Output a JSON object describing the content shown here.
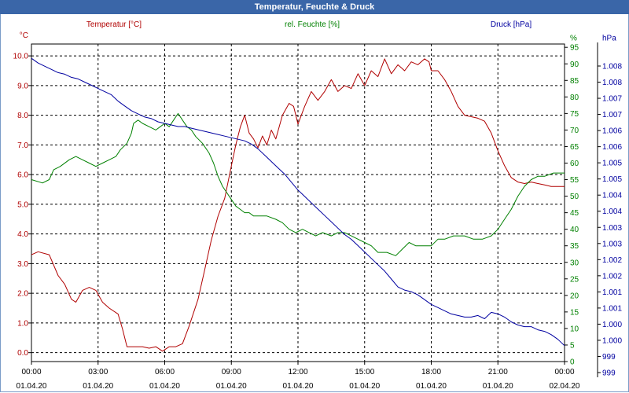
{
  "title": "Temperatur, Feuchte & Druck",
  "colors": {
    "temperature": "#b00000",
    "humidity": "#008000",
    "pressure": "#0000a0"
  },
  "chart_data": {
    "type": "line",
    "title": "Temperatur, Feuchte & Druck",
    "grid": true,
    "x_ticks": [
      {
        "time": "00:00",
        "date": "01.04.20"
      },
      {
        "time": "03:00",
        "date": "01.04.20"
      },
      {
        "time": "06:00",
        "date": "01.04.20"
      },
      {
        "time": "09:00",
        "date": "01.04.20"
      },
      {
        "time": "12:00",
        "date": "01.04.20"
      },
      {
        "time": "15:00",
        "date": "01.04.20"
      },
      {
        "time": "18:00",
        "date": "01.04.20"
      },
      {
        "time": "21:00",
        "date": "01.04.20"
      },
      {
        "time": "00:00",
        "date": "02.04.20"
      }
    ],
    "x_range_hours": [
      0,
      24
    ],
    "axes": {
      "temperature": {
        "label": "Temperatur [°C]",
        "unit": "°C",
        "range": [
          -0.3,
          10.4
        ],
        "ticks": [
          "0.0",
          "1.0",
          "2.0",
          "3.0",
          "4.0",
          "5.0",
          "6.0",
          "7.0",
          "8.0",
          "9.0",
          "10.0"
        ]
      },
      "humidity": {
        "label": "rel. Feuchte [%]",
        "unit": "%",
        "range": [
          0,
          96
        ],
        "ticks": [
          "0",
          "5",
          "10",
          "15",
          "20",
          "25",
          "30",
          "35",
          "40",
          "45",
          "50",
          "55",
          "60",
          "65",
          "70",
          "75",
          "80",
          "85",
          "90",
          "95"
        ]
      },
      "pressure": {
        "label": "Druck [hPa]",
        "unit": "hPa",
        "range": [
          998.6,
          1008.6
        ],
        "ticks": [
          "999",
          "999",
          "1.000",
          "1.000",
          "1.001",
          "1.001",
          "1.002",
          "1.002",
          "1.003",
          "1.003",
          "1.004",
          "1.004",
          "1.005",
          "1.005",
          "1.006",
          "1.006",
          "1.007",
          "1.007",
          "1.008",
          "1.008"
        ]
      }
    },
    "series": [
      {
        "name": "Temperatur [°C]",
        "axis": "temperature",
        "points": [
          [
            0,
            3.3
          ],
          [
            0.3,
            3.4
          ],
          [
            0.8,
            3.3
          ],
          [
            1.2,
            2.6
          ],
          [
            1.5,
            2.3
          ],
          [
            1.8,
            1.8
          ],
          [
            2.0,
            1.7
          ],
          [
            2.3,
            2.1
          ],
          [
            2.6,
            2.2
          ],
          [
            2.9,
            2.1
          ],
          [
            3.2,
            1.7
          ],
          [
            3.5,
            1.5
          ],
          [
            3.9,
            1.3
          ],
          [
            4.1,
            0.8
          ],
          [
            4.3,
            0.2
          ],
          [
            4.6,
            0.2
          ],
          [
            5.0,
            0.2
          ],
          [
            5.3,
            0.15
          ],
          [
            5.6,
            0.2
          ],
          [
            5.9,
            0.05
          ],
          [
            6.2,
            0.2
          ],
          [
            6.5,
            0.2
          ],
          [
            6.8,
            0.3
          ],
          [
            7.1,
            0.9
          ],
          [
            7.5,
            1.8
          ],
          [
            7.8,
            2.8
          ],
          [
            8.1,
            3.8
          ],
          [
            8.4,
            4.6
          ],
          [
            8.7,
            5.2
          ],
          [
            9.0,
            6.3
          ],
          [
            9.2,
            7.0
          ],
          [
            9.4,
            7.6
          ],
          [
            9.6,
            8.0
          ],
          [
            9.8,
            7.4
          ],
          [
            10.0,
            7.2
          ],
          [
            10.2,
            6.9
          ],
          [
            10.4,
            7.3
          ],
          [
            10.6,
            7.0
          ],
          [
            10.8,
            7.5
          ],
          [
            11.0,
            7.2
          ],
          [
            11.3,
            8.0
          ],
          [
            11.6,
            8.4
          ],
          [
            11.8,
            8.3
          ],
          [
            12.0,
            7.7
          ],
          [
            12.3,
            8.3
          ],
          [
            12.6,
            8.8
          ],
          [
            12.9,
            8.5
          ],
          [
            13.2,
            8.8
          ],
          [
            13.5,
            9.2
          ],
          [
            13.8,
            8.8
          ],
          [
            14.1,
            9.0
          ],
          [
            14.4,
            8.9
          ],
          [
            14.7,
            9.4
          ],
          [
            15.0,
            9.0
          ],
          [
            15.3,
            9.5
          ],
          [
            15.6,
            9.3
          ],
          [
            15.9,
            9.9
          ],
          [
            16.2,
            9.4
          ],
          [
            16.5,
            9.7
          ],
          [
            16.8,
            9.5
          ],
          [
            17.1,
            9.8
          ],
          [
            17.4,
            9.7
          ],
          [
            17.7,
            9.9
          ],
          [
            17.9,
            9.8
          ],
          [
            18.0,
            9.5
          ],
          [
            18.3,
            9.5
          ],
          [
            18.6,
            9.2
          ],
          [
            18.9,
            8.8
          ],
          [
            19.2,
            8.3
          ],
          [
            19.5,
            8.0
          ],
          [
            19.8,
            7.95
          ],
          [
            20.1,
            7.9
          ],
          [
            20.4,
            7.8
          ],
          [
            20.7,
            7.4
          ],
          [
            21.0,
            6.8
          ],
          [
            21.3,
            6.3
          ],
          [
            21.6,
            5.9
          ],
          [
            21.9,
            5.75
          ],
          [
            22.2,
            5.7
          ],
          [
            22.5,
            5.75
          ],
          [
            22.8,
            5.7
          ],
          [
            23.1,
            5.65
          ],
          [
            23.4,
            5.6
          ],
          [
            23.7,
            5.6
          ],
          [
            24.0,
            5.6
          ]
        ]
      },
      {
        "name": "rel. Feuchte [%]",
        "axis": "humidity",
        "points": [
          [
            0,
            55
          ],
          [
            0.5,
            54
          ],
          [
            0.8,
            55
          ],
          [
            1.0,
            58
          ],
          [
            1.3,
            59
          ],
          [
            1.7,
            61
          ],
          [
            2.0,
            62
          ],
          [
            2.3,
            61
          ],
          [
            2.6,
            60
          ],
          [
            2.9,
            59
          ],
          [
            3.2,
            60
          ],
          [
            3.5,
            61
          ],
          [
            3.8,
            62
          ],
          [
            4.0,
            64
          ],
          [
            4.3,
            66
          ],
          [
            4.5,
            69
          ],
          [
            4.6,
            72
          ],
          [
            4.8,
            73
          ],
          [
            5.0,
            72
          ],
          [
            5.3,
            71
          ],
          [
            5.6,
            70
          ],
          [
            5.8,
            71
          ],
          [
            6.0,
            72
          ],
          [
            6.2,
            71
          ],
          [
            6.4,
            73
          ],
          [
            6.6,
            75
          ],
          [
            6.8,
            73
          ],
          [
            7.0,
            71
          ],
          [
            7.2,
            70
          ],
          [
            7.4,
            68
          ],
          [
            7.7,
            66
          ],
          [
            8.0,
            63
          ],
          [
            8.2,
            60
          ],
          [
            8.4,
            56
          ],
          [
            8.6,
            53
          ],
          [
            8.8,
            51
          ],
          [
            9.0,
            49
          ],
          [
            9.2,
            47
          ],
          [
            9.4,
            46
          ],
          [
            9.6,
            45
          ],
          [
            9.8,
            45
          ],
          [
            10.0,
            44
          ],
          [
            10.3,
            44
          ],
          [
            10.6,
            44
          ],
          [
            11.0,
            43
          ],
          [
            11.3,
            42
          ],
          [
            11.6,
            40
          ],
          [
            11.9,
            39
          ],
          [
            12.2,
            40
          ],
          [
            12.5,
            39
          ],
          [
            12.8,
            38
          ],
          [
            13.1,
            39
          ],
          [
            13.5,
            38
          ],
          [
            13.8,
            39
          ],
          [
            14.1,
            39
          ],
          [
            14.4,
            38
          ],
          [
            14.7,
            37
          ],
          [
            15.0,
            36
          ],
          [
            15.3,
            35
          ],
          [
            15.6,
            33
          ],
          [
            16.0,
            33
          ],
          [
            16.4,
            32
          ],
          [
            16.7,
            34
          ],
          [
            17.0,
            36
          ],
          [
            17.3,
            35
          ],
          [
            17.7,
            35
          ],
          [
            18.0,
            35
          ],
          [
            18.3,
            37
          ],
          [
            18.6,
            37
          ],
          [
            19.0,
            38
          ],
          [
            19.5,
            38
          ],
          [
            19.9,
            37
          ],
          [
            20.3,
            37
          ],
          [
            20.7,
            38
          ],
          [
            21.0,
            40
          ],
          [
            21.3,
            43
          ],
          [
            21.6,
            46
          ],
          [
            21.9,
            50
          ],
          [
            22.2,
            53
          ],
          [
            22.5,
            55
          ],
          [
            22.8,
            56
          ],
          [
            23.1,
            56
          ],
          [
            23.5,
            57
          ],
          [
            23.8,
            57
          ],
          [
            24.0,
            57
          ]
        ]
      },
      {
        "name": "Druck [hPa]",
        "axis": "pressure",
        "points": [
          [
            0,
            1008.15
          ],
          [
            0.3,
            1008.0
          ],
          [
            0.6,
            1007.9
          ],
          [
            0.9,
            1007.8
          ],
          [
            1.2,
            1007.7
          ],
          [
            1.5,
            1007.65
          ],
          [
            1.8,
            1007.55
          ],
          [
            2.1,
            1007.5
          ],
          [
            2.4,
            1007.4
          ],
          [
            2.7,
            1007.3
          ],
          [
            3.0,
            1007.2
          ],
          [
            3.3,
            1007.1
          ],
          [
            3.6,
            1007.0
          ],
          [
            3.9,
            1006.8
          ],
          [
            4.2,
            1006.65
          ],
          [
            4.5,
            1006.5
          ],
          [
            4.8,
            1006.4
          ],
          [
            5.1,
            1006.3
          ],
          [
            5.4,
            1006.25
          ],
          [
            5.7,
            1006.15
          ],
          [
            6.0,
            1006.1
          ],
          [
            6.3,
            1006.05
          ],
          [
            6.6,
            1006.0
          ],
          [
            6.9,
            1006.0
          ],
          [
            7.2,
            1005.95
          ],
          [
            7.5,
            1005.9
          ],
          [
            7.8,
            1005.85
          ],
          [
            8.1,
            1005.8
          ],
          [
            8.4,
            1005.75
          ],
          [
            8.7,
            1005.7
          ],
          [
            9.0,
            1005.65
          ],
          [
            9.3,
            1005.6
          ],
          [
            9.6,
            1005.55
          ],
          [
            9.9,
            1005.45
          ],
          [
            10.2,
            1005.3
          ],
          [
            10.5,
            1005.1
          ],
          [
            10.8,
            1004.9
          ],
          [
            11.1,
            1004.7
          ],
          [
            11.4,
            1004.5
          ],
          [
            11.7,
            1004.25
          ],
          [
            12.0,
            1004.0
          ],
          [
            12.3,
            1003.8
          ],
          [
            12.6,
            1003.6
          ],
          [
            12.9,
            1003.4
          ],
          [
            13.2,
            1003.2
          ],
          [
            13.5,
            1003.0
          ],
          [
            13.8,
            1002.8
          ],
          [
            14.1,
            1002.6
          ],
          [
            14.4,
            1002.45
          ],
          [
            14.7,
            1002.25
          ],
          [
            15.0,
            1002.05
          ],
          [
            15.3,
            1001.85
          ],
          [
            15.6,
            1001.65
          ],
          [
            15.9,
            1001.45
          ],
          [
            16.2,
            1001.2
          ],
          [
            16.5,
            1000.95
          ],
          [
            16.8,
            1000.85
          ],
          [
            17.1,
            1000.8
          ],
          [
            17.4,
            1000.7
          ],
          [
            17.7,
            1000.55
          ],
          [
            18.0,
            1000.4
          ],
          [
            18.3,
            1000.3
          ],
          [
            18.6,
            1000.2
          ],
          [
            18.9,
            1000.1
          ],
          [
            19.2,
            1000.05
          ],
          [
            19.5,
            1000.0
          ],
          [
            19.8,
            1000.0
          ],
          [
            20.1,
            1000.05
          ],
          [
            20.4,
            999.95
          ],
          [
            20.7,
            1000.15
          ],
          [
            21.0,
            1000.1
          ],
          [
            21.3,
            1000.0
          ],
          [
            21.6,
            999.85
          ],
          [
            21.9,
            999.75
          ],
          [
            22.2,
            999.7
          ],
          [
            22.5,
            999.7
          ],
          [
            22.8,
            999.6
          ],
          [
            23.1,
            999.55
          ],
          [
            23.4,
            999.45
          ],
          [
            23.7,
            999.3
          ],
          [
            24.0,
            999.1
          ]
        ]
      }
    ]
  }
}
